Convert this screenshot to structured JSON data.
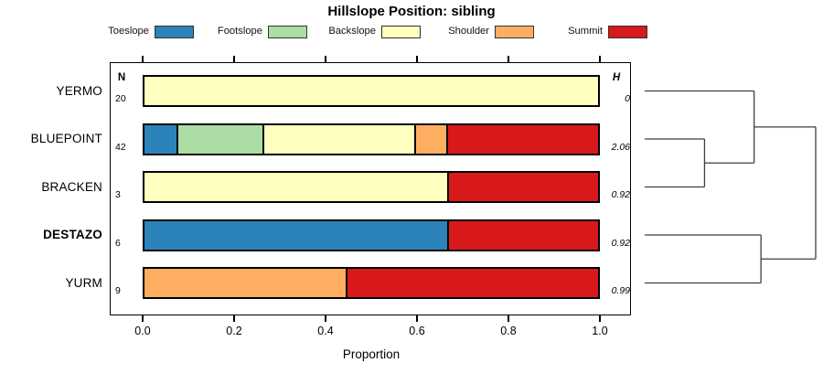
{
  "chart_data": {
    "type": "bar",
    "variant": "horizontal-stacked-proportion",
    "title": "Hillslope Position: sibling",
    "xlabel": "Proportion",
    "xlim": [
      0,
      1
    ],
    "xticks": [
      "0.0",
      "0.2",
      "0.4",
      "0.6",
      "0.8",
      "1.0"
    ],
    "grid": false,
    "columns": {
      "n_header": "N",
      "h_header": "H"
    },
    "legend": {
      "position": "top",
      "entries": [
        {
          "label": "Toeslope",
          "color": "#2B83BA"
        },
        {
          "label": "Footslope",
          "color": "#ABDDA4"
        },
        {
          "label": "Backslope",
          "color": "#FFFFBF"
        },
        {
          "label": "Shoulder",
          "color": "#FDAE61"
        },
        {
          "label": "Summit",
          "color": "#D7191C"
        }
      ]
    },
    "colors": {
      "Toeslope": "#2B83BA",
      "Footslope": "#ABDDA4",
      "Backslope": "#FFFFBF",
      "Shoulder": "#FDAE61",
      "Summit": "#D7191C",
      "bar_border": "#000000",
      "dendrogram_line": "#3f3f3f"
    },
    "rows": [
      {
        "label": "YERMO",
        "emphasis": false,
        "N": "20",
        "H": "0",
        "segments": [
          {
            "category": "Backslope",
            "proportion": 1.0
          }
        ]
      },
      {
        "label": "BLUEPOINT",
        "emphasis": false,
        "N": "42",
        "H": "2.06",
        "segments": [
          {
            "category": "Toeslope",
            "proportion": 0.071
          },
          {
            "category": "Footslope",
            "proportion": 0.19
          },
          {
            "category": "Backslope",
            "proportion": 0.334
          },
          {
            "category": "Shoulder",
            "proportion": 0.071
          },
          {
            "category": "Summit",
            "proportion": 0.334
          }
        ]
      },
      {
        "label": "BRACKEN",
        "emphasis": false,
        "N": "3",
        "H": "0.92",
        "segments": [
          {
            "category": "Backslope",
            "proportion": 0.667
          },
          {
            "category": "Summit",
            "proportion": 0.333
          }
        ]
      },
      {
        "label": "DESTAZO",
        "emphasis": true,
        "N": "6",
        "H": "0.92",
        "segments": [
          {
            "category": "Toeslope",
            "proportion": 0.667
          },
          {
            "category": "Summit",
            "proportion": 0.333
          }
        ]
      },
      {
        "label": "YURM",
        "emphasis": false,
        "N": "9",
        "H": "0.99",
        "segments": [
          {
            "category": "Shoulder",
            "proportion": 0.444
          },
          {
            "category": "Summit",
            "proportion": 0.556
          }
        ]
      }
    ],
    "dendrogram": {
      "orientation": "right-of-bars",
      "structure": "((YERMO,(BLUEPOINT,BRACKEN)),(DESTAZO,YURM))",
      "leaves": [
        "YERMO",
        "BLUEPOINT",
        "BRACKEN",
        "DESTAZO",
        "YURM"
      ],
      "merges": [
        {
          "children": [
            "BLUEPOINT",
            "BRACKEN"
          ],
          "height": 0.35
        },
        {
          "children": [
            "YERMO",
            "#0"
          ],
          "height": 0.64
        },
        {
          "children": [
            "DESTAZO",
            "YURM"
          ],
          "height": 0.68
        },
        {
          "children": [
            "#1",
            "#2"
          ],
          "height": 1.0
        }
      ]
    }
  }
}
